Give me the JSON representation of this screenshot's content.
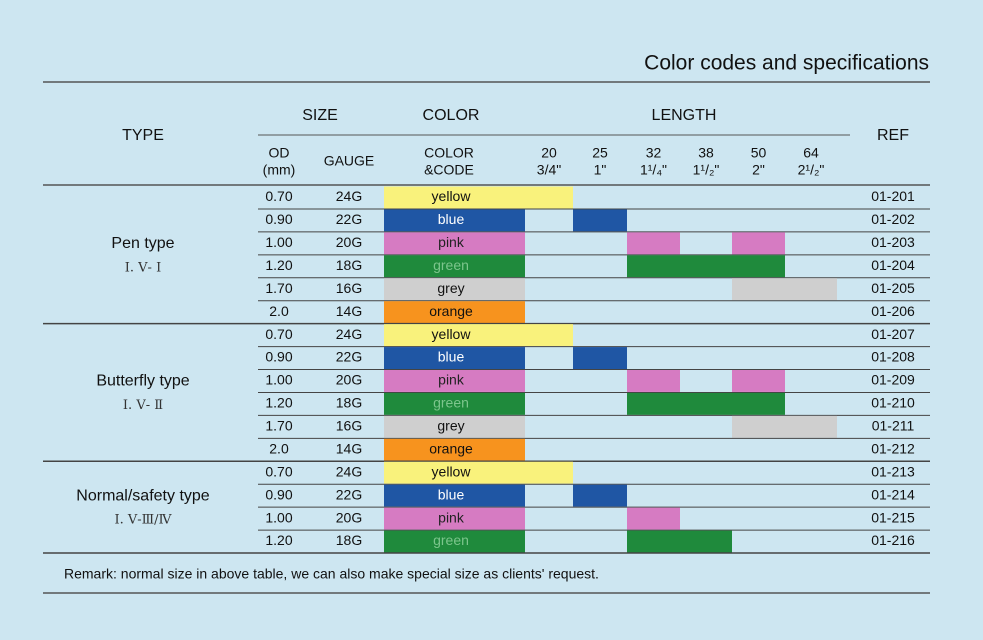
{
  "title": "Color codes and specifications",
  "header": {
    "type": "TYPE",
    "size": "SIZE",
    "color": "COLOR",
    "length": "LENGTH",
    "ref": "REF",
    "od": [
      "OD",
      "(mm)"
    ],
    "gauge": "GAUGE",
    "color_code": [
      "COLOR",
      "&CODE"
    ],
    "lengths": [
      [
        "20",
        "3/4\""
      ],
      [
        "25",
        "1\""
      ],
      [
        "32",
        "1¹/₄\""
      ],
      [
        "38",
        "1¹/₂\""
      ],
      [
        "50",
        "2\""
      ],
      [
        "64",
        "2¹/₂\""
      ]
    ]
  },
  "swatches": {
    "yellow": {
      "fill": "#f9f27c",
      "text": "#111"
    },
    "blue": {
      "fill": "#1f56a4",
      "text": "#ffffff"
    },
    "pink": {
      "fill": "#d67bc2",
      "text": "#222"
    },
    "green": {
      "fill": "#1f8a3c",
      "text": "#7cc58c"
    },
    "grey": {
      "fill": "#cfcfcf",
      "text": "#111"
    },
    "orange": {
      "fill": "#f7931e",
      "text": "#111"
    }
  },
  "groups": [
    {
      "name": "Pen type",
      "code": "Ⅰ. Ⅴ- Ⅰ",
      "rows": [
        {
          "od": "0.70",
          "gauge": "24G",
          "color": "yellow",
          "ref": "01-201",
          "lengths": [
            true,
            false,
            false,
            false,
            false,
            false
          ]
        },
        {
          "od": "0.90",
          "gauge": "22G",
          "color": "blue",
          "ref": "01-202",
          "lengths": [
            false,
            true,
            false,
            false,
            false,
            false
          ]
        },
        {
          "od": "1.00",
          "gauge": "20G",
          "color": "pink",
          "ref": "01-203",
          "lengths": [
            false,
            false,
            true,
            false,
            true,
            false
          ]
        },
        {
          "od": "1.20",
          "gauge": "18G",
          "color": "green",
          "ref": "01-204",
          "lengths": [
            false,
            false,
            true,
            true,
            true,
            false
          ]
        },
        {
          "od": "1.70",
          "gauge": "16G",
          "color": "grey",
          "ref": "01-205",
          "lengths": [
            false,
            false,
            false,
            false,
            true,
            true
          ]
        },
        {
          "od": "2.0",
          "gauge": "14G",
          "color": "orange",
          "ref": "01-206",
          "lengths": [
            false,
            false,
            false,
            false,
            false,
            false
          ]
        }
      ]
    },
    {
      "name": "Butterfly type",
      "code": "Ⅰ. Ⅴ- Ⅱ",
      "rows": [
        {
          "od": "0.70",
          "gauge": "24G",
          "color": "yellow",
          "ref": "01-207",
          "lengths": [
            true,
            false,
            false,
            false,
            false,
            false
          ]
        },
        {
          "od": "0.90",
          "gauge": "22G",
          "color": "blue",
          "ref": "01-208",
          "lengths": [
            false,
            true,
            false,
            false,
            false,
            false
          ]
        },
        {
          "od": "1.00",
          "gauge": "20G",
          "color": "pink",
          "ref": "01-209",
          "lengths": [
            false,
            false,
            true,
            false,
            true,
            false
          ]
        },
        {
          "od": "1.20",
          "gauge": "18G",
          "color": "green",
          "ref": "01-210",
          "lengths": [
            false,
            false,
            true,
            true,
            true,
            false
          ]
        },
        {
          "od": "1.70",
          "gauge": "16G",
          "color": "grey",
          "ref": "01-211",
          "lengths": [
            false,
            false,
            false,
            false,
            true,
            true
          ]
        },
        {
          "od": "2.0",
          "gauge": "14G",
          "color": "orange",
          "ref": "01-212",
          "lengths": [
            false,
            false,
            false,
            false,
            false,
            false
          ]
        }
      ]
    },
    {
      "name": "Normal/safety type",
      "code": "Ⅰ. Ⅴ-Ⅲ/Ⅳ",
      "rows": [
        {
          "od": "0.70",
          "gauge": "24G",
          "color": "yellow",
          "ref": "01-213",
          "lengths": [
            true,
            false,
            false,
            false,
            false,
            false
          ]
        },
        {
          "od": "0.90",
          "gauge": "22G",
          "color": "blue",
          "ref": "01-214",
          "lengths": [
            false,
            true,
            false,
            false,
            false,
            false
          ]
        },
        {
          "od": "1.00",
          "gauge": "20G",
          "color": "pink",
          "ref": "01-215",
          "lengths": [
            false,
            false,
            true,
            false,
            false,
            false
          ]
        },
        {
          "od": "1.20",
          "gauge": "18G",
          "color": "green",
          "ref": "01-216",
          "lengths": [
            false,
            false,
            true,
            true,
            false,
            false
          ]
        }
      ]
    }
  ],
  "remark": "Remark: normal size in above table, we can also make special size as clients' request."
}
